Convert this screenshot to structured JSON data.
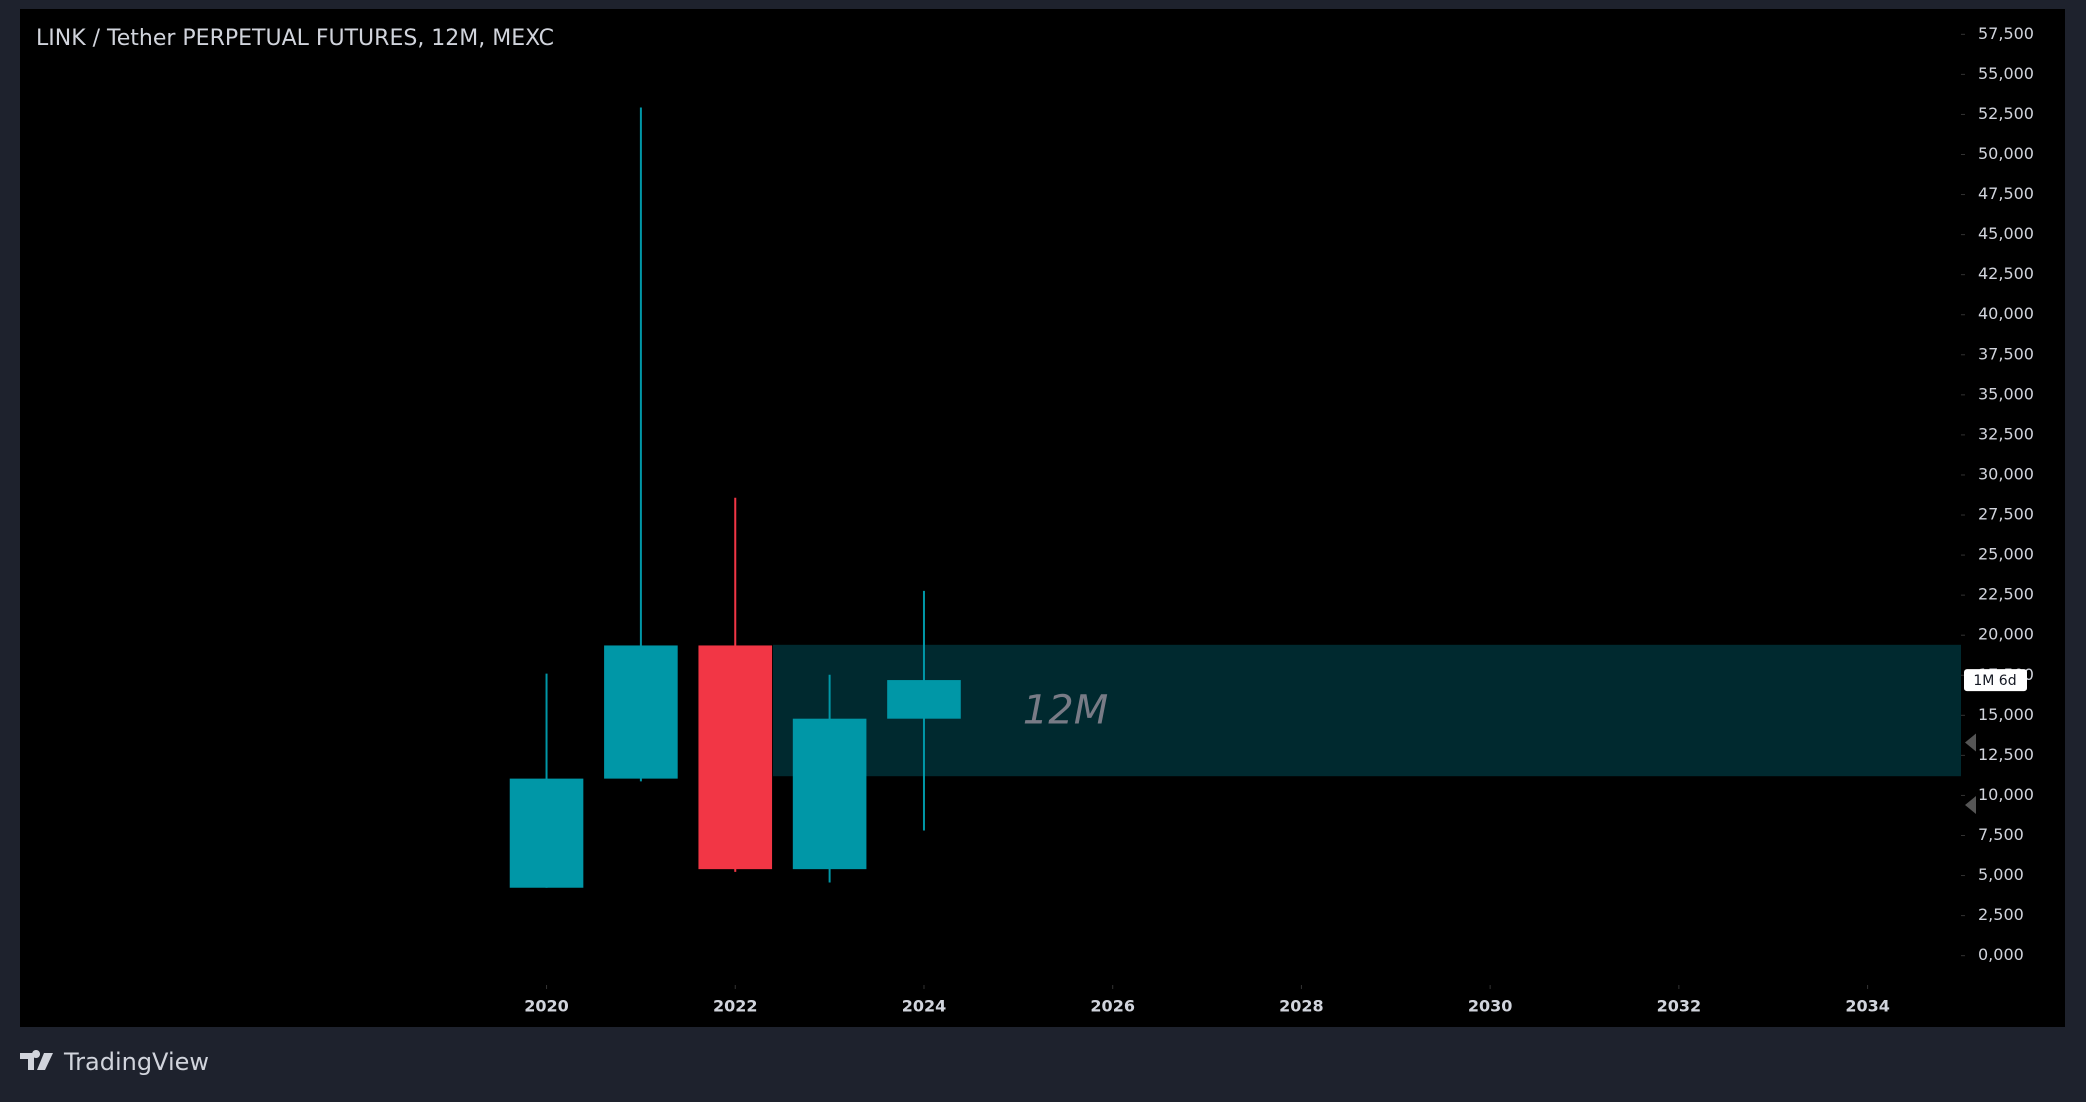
{
  "chart_data": {
    "type": "candlestick",
    "title": "LINK / Tether PERPETUAL FUTURES, 12M, MEXC",
    "x": [
      2020,
      2021,
      2022,
      2023,
      2024
    ],
    "open": [
      4240,
      11050,
      19360,
      5400,
      14790
    ],
    "high": [
      17600,
      52930,
      28580,
      17530,
      22770
    ],
    "low": [
      4240,
      10880,
      5230,
      4570,
      7810
    ],
    "close": [
      11050,
      19360,
      5400,
      14790,
      17200
    ],
    "up_color": "#0097a7",
    "down_color": "#f23645",
    "xlim": [
      2014.42,
      2034.99
    ],
    "xticks": [
      2020,
      2022,
      2024,
      2026,
      2028,
      2030,
      2032,
      2034
    ],
    "ylim": [
      -1830,
      59080
    ],
    "yticks": [
      {
        "value": 0,
        "label": "0,000"
      },
      {
        "value": 2500,
        "label": "2,500"
      },
      {
        "value": 5000,
        "label": "5,000"
      },
      {
        "value": 7500,
        "label": "7,500"
      },
      {
        "value": 10000,
        "label": "10,000"
      },
      {
        "value": 12500,
        "label": "12,500"
      },
      {
        "value": 15000,
        "label": "15,000"
      },
      {
        "value": 17500,
        "label": "17,500"
      },
      {
        "value": 20000,
        "label": "20,000"
      },
      {
        "value": 22500,
        "label": "22,500"
      },
      {
        "value": 25000,
        "label": "25,000"
      },
      {
        "value": 27500,
        "label": "27,500"
      },
      {
        "value": 30000,
        "label": "30,000"
      },
      {
        "value": 32500,
        "label": "32,500"
      },
      {
        "value": 35000,
        "label": "35,000"
      },
      {
        "value": 37500,
        "label": "37,500"
      },
      {
        "value": 40000,
        "label": "40,000"
      },
      {
        "value": 42500,
        "label": "42,500"
      },
      {
        "value": 45000,
        "label": "45,000"
      },
      {
        "value": 47500,
        "label": "47,500"
      },
      {
        "value": 50000,
        "label": "50,000"
      },
      {
        "value": 52500,
        "label": "52,500"
      },
      {
        "value": 55000,
        "label": "55,000"
      },
      {
        "value": 57500,
        "label": "57,500"
      }
    ],
    "zone": {
      "x_start": 2022.4,
      "low": 11200,
      "high": 19400,
      "color": "#00292f",
      "label": "12M"
    },
    "countdown_label": "1M 6d"
  },
  "footer": {
    "brand": "TradingView"
  }
}
